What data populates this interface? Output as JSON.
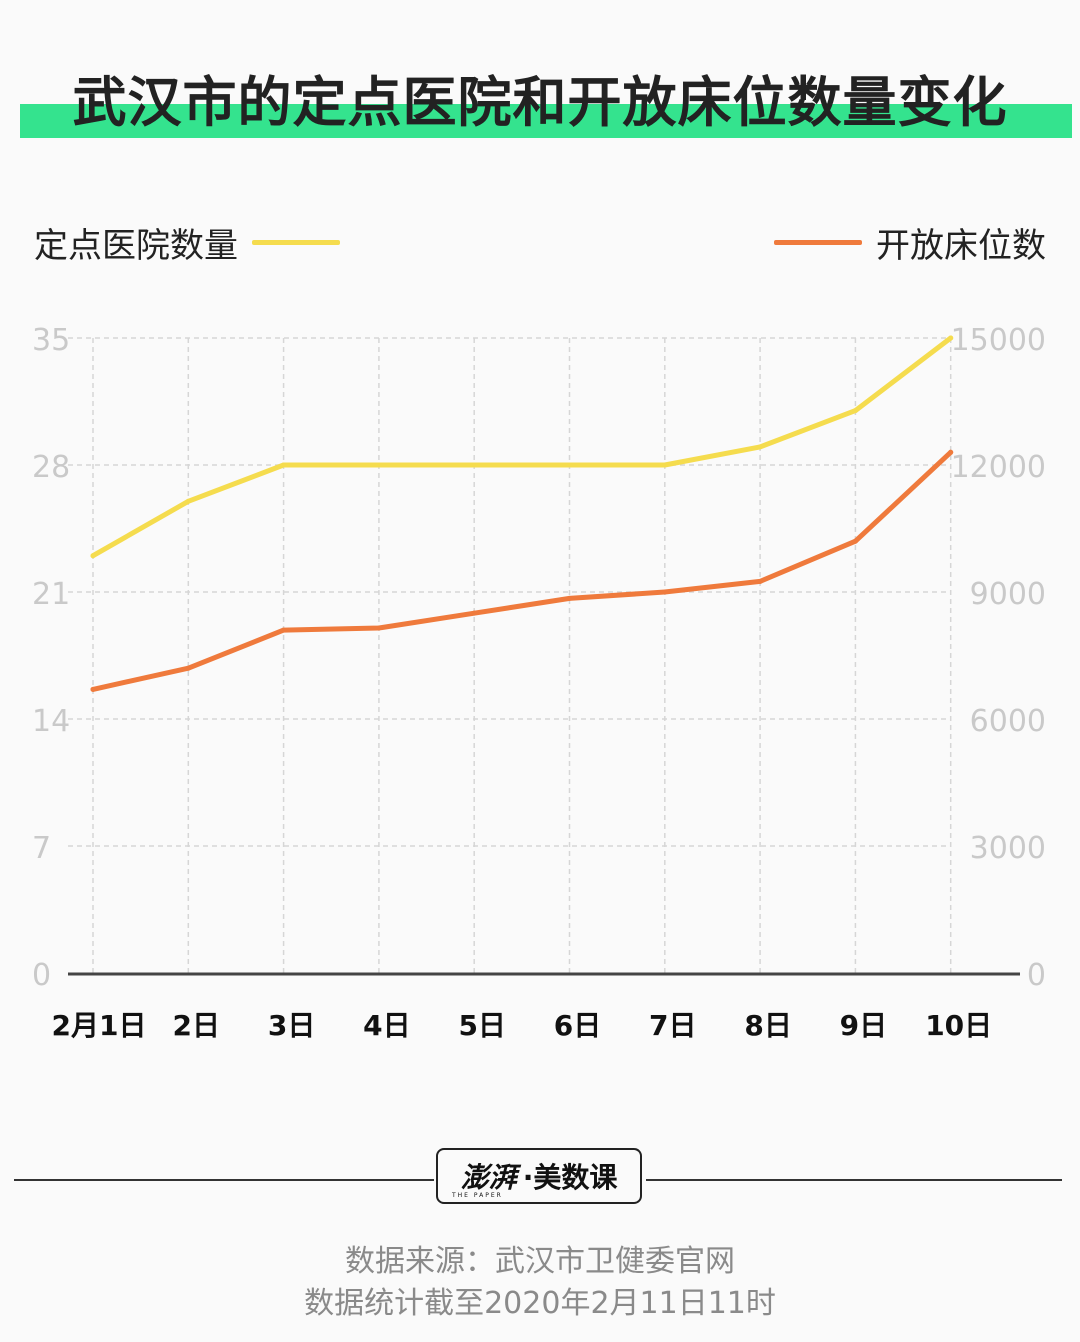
{
  "title": "武汉市的定点医院和开放床位数量变化",
  "legend": {
    "left": {
      "label": "定点医院数量",
      "color": "#f5dc4e"
    },
    "right": {
      "label": "开放床位数",
      "color": "#ef7a3c"
    }
  },
  "chart_data": {
    "type": "line",
    "categories": [
      "2月1日",
      "2日",
      "3日",
      "4日",
      "5日",
      "6日",
      "7日",
      "8日",
      "9日",
      "10日"
    ],
    "series": [
      {
        "name": "定点医院数量",
        "axis": "left",
        "color": "#f5dc4e",
        "values": [
          23,
          26,
          28,
          28,
          28,
          28,
          28,
          29,
          31,
          35
        ]
      },
      {
        "name": "开放床位数",
        "axis": "right",
        "color": "#ef7a3c",
        "values": [
          6700,
          7200,
          8100,
          8150,
          8500,
          8850,
          9000,
          9250,
          10200,
          12300
        ]
      }
    ],
    "y_left": {
      "ticks": [
        0,
        7,
        14,
        21,
        28,
        35
      ],
      "ylim": [
        0,
        35
      ]
    },
    "y_right": {
      "ticks": [
        0,
        3000,
        6000,
        9000,
        12000,
        15000
      ],
      "ylim": [
        0,
        15000
      ]
    },
    "grid": true
  },
  "logo": {
    "brand": "澎湃",
    "product": "·美数课",
    "sub": "THE PAPER"
  },
  "source_lines": [
    "数据来源：武汉市卫健委官网",
    "数据统计截至2020年2月11日11时"
  ]
}
